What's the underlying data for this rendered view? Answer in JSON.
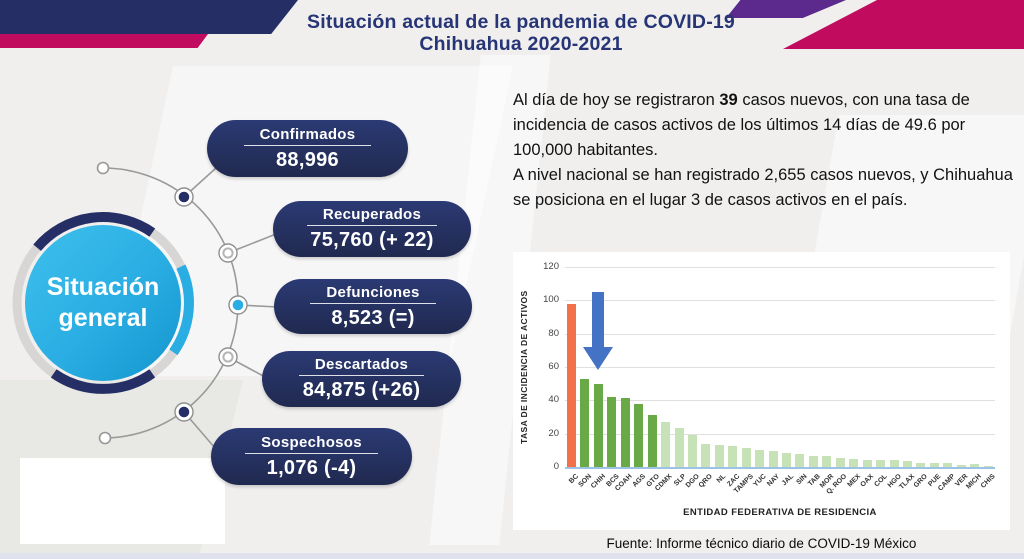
{
  "header": {
    "title_line1": "Situación actual de la pandemia de COVID-19",
    "title_line2": "Chihuahua 2020-2021"
  },
  "palette": {
    "navy": "#252f66",
    "magenta": "#c00b5e",
    "purple": "#5b2a8c",
    "cyan": "#29ade3",
    "title_blue": "#273576",
    "pill_navy": "#253169"
  },
  "diagram": {
    "center_label_line1": "Situación",
    "center_label_line2": "general",
    "items": [
      {
        "label": "Confirmados",
        "value": "88,996"
      },
      {
        "label": "Recuperados",
        "value": "75,760 (+ 22)"
      },
      {
        "label": "Defunciones",
        "value": "8,523 (=)"
      },
      {
        "label": "Descartados",
        "value": "84,875 (+26)"
      },
      {
        "label": "Sospechosos",
        "value": "1,076 (-4)"
      }
    ]
  },
  "summary": {
    "p1_before": "Al día de hoy se registraron ",
    "p1_bold": "39",
    "p1_after": " casos nuevos, con una tasa de incidencia de casos activos de los últimos 14 días de 49.6 por 100,000 habitantes.",
    "p2": "A nivel nacional se han registrado 2,655 casos nuevos, y Chihuahua se posiciona en el lugar 3 de casos activos en el país."
  },
  "chart_data": {
    "type": "bar",
    "title": "",
    "xlabel": "ENTIDAD FEDERATIVA DE RESIDENCIA",
    "ylabel": "TASA DE INCIDENCIA DE ACTIVOS",
    "ylim": [
      0,
      120
    ],
    "yticks": [
      0,
      20,
      40,
      60,
      80,
      100,
      120
    ],
    "grid": true,
    "legend": "none",
    "categories": [
      "BC",
      "SON",
      "CHIH",
      "BCS",
      "COAH",
      "AGS",
      "GTO",
      "CDMX",
      "SLP",
      "DGO",
      "QRO",
      "NL",
      "ZAC",
      "TAMPS",
      "YUC",
      "NAY",
      "JAL",
      "SIN",
      "TAB",
      "MOR",
      "Q. ROO",
      "MEX",
      "OAX",
      "COL",
      "HGO",
      "TLAX",
      "GRO",
      "PUE",
      "CAMP",
      "VER",
      "MICH",
      "CHIS"
    ],
    "values": [
      98,
      53,
      49.6,
      42,
      41.5,
      38,
      31,
      27,
      23.5,
      19.5,
      14,
      13,
      12.5,
      11.5,
      10,
      9.5,
      8.5,
      8,
      6.5,
      6.5,
      5.5,
      5,
      4.5,
      4.2,
      4,
      3.8,
      2.6,
      2.4,
      2.4,
      1.5,
      1.8,
      0.4
    ],
    "bar_palette": {
      "orange": "#f2714b",
      "green_dark": "#69aa47",
      "green_light": "#c8e2b7"
    },
    "bar_color_names": [
      "orange",
      "green_dark",
      "green_dark",
      "green_dark",
      "green_dark",
      "green_dark",
      "green_dark",
      "green_light",
      "green_light",
      "green_light",
      "green_light",
      "green_light",
      "green_light",
      "green_light",
      "green_light",
      "green_light",
      "green_light",
      "green_light",
      "green_light",
      "green_light",
      "green_light",
      "green_light",
      "green_light",
      "green_light",
      "green_light",
      "green_light",
      "green_light",
      "green_light",
      "green_light",
      "green_light",
      "green_light",
      "green_light"
    ],
    "baseline_color": "#9cc2e5",
    "highlight": {
      "category": "CHIH",
      "marker": "down-arrow",
      "color": "#4472c4"
    }
  },
  "footer": {
    "source": "Fuente: Informe técnico diario de COVID-19 México"
  }
}
